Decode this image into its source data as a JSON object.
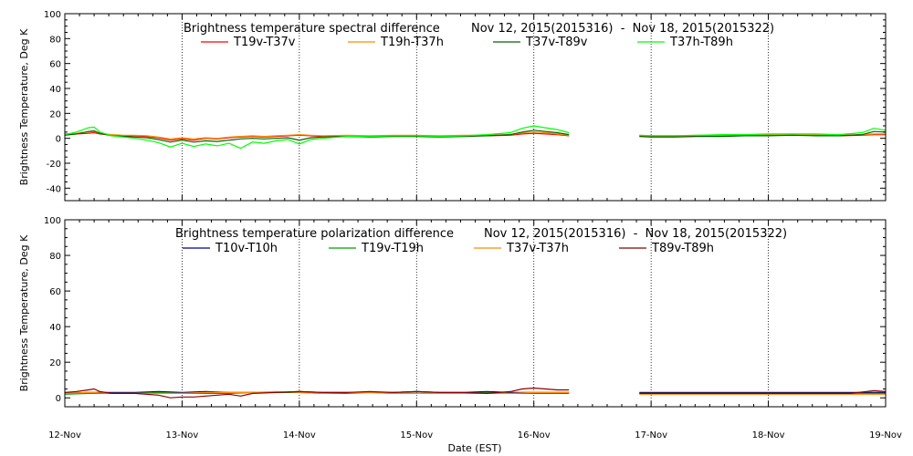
{
  "chart_data": [
    {
      "type": "line",
      "title": "Brightness temperature spectral difference",
      "date_range": "Nov 12, 2015(2015316)  -  Nov 18, 2015(2015322)",
      "ylabel": "Brightness Temperature, Deg K",
      "xlabel": "",
      "ylim": [
        -50,
        100
      ],
      "y_ticks": [
        100,
        80,
        60,
        40,
        20,
        0,
        -20,
        -40
      ],
      "xlim": [
        "2015-11-12",
        "2015-11-19"
      ],
      "x_ticks": [
        "12-Nov",
        "13-Nov",
        "14-Nov",
        "15-Nov",
        "16-Nov",
        "17-Nov",
        "18-Nov",
        "19-Nov"
      ],
      "grid": "vertical dotted at day boundaries",
      "series": [
        {
          "name": "T19v-T37v",
          "color": "#ff0000",
          "segments": [
            {
              "x": [
                0.0,
                0.1,
                0.2,
                0.25,
                0.3,
                0.4,
                0.5,
                0.6,
                0.7,
                0.8,
                0.9,
                1.0,
                1.1,
                1.2,
                1.3,
                1.4,
                1.5,
                1.6,
                1.7,
                1.8,
                1.9,
                2.0,
                2.1,
                2.2,
                2.4,
                2.6,
                2.8,
                3.0,
                3.2,
                3.4,
                3.6,
                3.8,
                3.9,
                4.0,
                4.1,
                4.2,
                4.3
              ],
              "y": [
                3,
                3.5,
                4,
                4.5,
                3.5,
                2.5,
                2.0,
                2.0,
                1.5,
                0.5,
                -1.5,
                -0.5,
                -1.5,
                0.0,
                -0.5,
                0.5,
                1.0,
                1.5,
                1.0,
                1.5,
                2.0,
                2.5,
                2.0,
                1.5,
                2.0,
                1.5,
                2.0,
                2.0,
                1.5,
                2.0,
                2.0,
                2.5,
                3.5,
                4.0,
                3.5,
                3.0,
                2.0
              ]
            },
            {
              "x": [
                4.9,
                5.0,
                5.2,
                5.4,
                5.6,
                5.8,
                6.0,
                6.2,
                6.4,
                6.6,
                6.8,
                6.9,
                7.0
              ],
              "y": [
                2.0,
                1.5,
                1.5,
                2.0,
                2.0,
                2.0,
                2.5,
                2.5,
                2.5,
                2.0,
                2.5,
                3.0,
                3.0
              ]
            }
          ]
        },
        {
          "name": "T19h-T37h",
          "color": "#ff8c00",
          "segments": [
            {
              "x": [
                0.0,
                0.1,
                0.2,
                0.25,
                0.3,
                0.4,
                0.5,
                0.6,
                0.7,
                0.8,
                0.9,
                1.0,
                1.1,
                1.2,
                1.3,
                1.4,
                1.5,
                1.6,
                1.7,
                1.8,
                1.9,
                2.0,
                2.1,
                2.2,
                2.4,
                2.6,
                2.8,
                3.0,
                3.2,
                3.4,
                3.6,
                3.8,
                3.9,
                4.0,
                4.1,
                4.2,
                4.3
              ],
              "y": [
                3.5,
                4.0,
                5.0,
                5.5,
                4.0,
                3.0,
                2.5,
                2.5,
                2.0,
                1.0,
                -0.5,
                0.5,
                -0.5,
                0.5,
                0.0,
                1.0,
                1.5,
                2.0,
                1.5,
                2.0,
                2.5,
                3.0,
                2.5,
                2.0,
                2.5,
                2.0,
                2.5,
                2.5,
                2.0,
                2.5,
                2.5,
                3.0,
                4.5,
                5.0,
                4.5,
                3.5,
                2.5
              ]
            },
            {
              "x": [
                4.9,
                5.0,
                5.2,
                5.4,
                5.6,
                5.8,
                6.0,
                6.2,
                6.4,
                6.6,
                6.8,
                6.9,
                7.0
              ],
              "y": [
                2.5,
                2.0,
                2.0,
                2.5,
                2.5,
                2.5,
                3.0,
                3.0,
                3.0,
                2.5,
                3.0,
                3.5,
                3.5
              ]
            }
          ]
        },
        {
          "name": "T37v-T89v",
          "color": "#006400",
          "segments": [
            {
              "x": [
                0.0,
                0.1,
                0.2,
                0.25,
                0.3,
                0.4,
                0.5,
                0.6,
                0.7,
                0.8,
                0.9,
                1.0,
                1.1,
                1.2,
                1.3,
                1.4,
                1.5,
                1.6,
                1.7,
                1.8,
                1.9,
                2.0,
                2.1,
                2.2,
                2.4,
                2.6,
                2.8,
                3.0,
                3.2,
                3.4,
                3.6,
                3.8,
                3.9,
                4.0,
                4.1,
                4.2,
                4.3
              ],
              "y": [
                2.5,
                3.5,
                5.5,
                6.0,
                4.0,
                2.0,
                1.5,
                1.0,
                0.5,
                -1.0,
                -3.0,
                -1.5,
                -3.0,
                -2.0,
                -2.5,
                -1.5,
                -0.5,
                0.0,
                -0.5,
                0.0,
                0.5,
                -1.5,
                0.5,
                1.0,
                1.5,
                1.0,
                1.5,
                1.5,
                1.0,
                1.5,
                2.0,
                3.0,
                5.0,
                6.5,
                5.5,
                4.5,
                3.0
              ]
            },
            {
              "x": [
                4.9,
                5.0,
                5.2,
                5.4,
                5.6,
                5.8,
                6.0,
                6.2,
                6.4,
                6.6,
                6.8,
                6.9,
                7.0
              ],
              "y": [
                1.5,
                1.0,
                1.0,
                1.5,
                1.5,
                2.0,
                2.0,
                2.5,
                2.0,
                2.0,
                3.0,
                5.5,
                5.0
              ]
            }
          ]
        },
        {
          "name": "T37h-T89h",
          "color": "#00ff00",
          "segments": [
            {
              "x": [
                0.0,
                0.1,
                0.2,
                0.25,
                0.3,
                0.4,
                0.5,
                0.6,
                0.7,
                0.8,
                0.9,
                1.0,
                1.1,
                1.2,
                1.3,
                1.4,
                1.5,
                1.6,
                1.7,
                1.8,
                1.9,
                2.0,
                2.1,
                2.2,
                2.4,
                2.6,
                2.8,
                3.0,
                3.2,
                3.4,
                3.6,
                3.8,
                3.9,
                4.0,
                4.1,
                4.2,
                4.3
              ],
              "y": [
                3.0,
                5.0,
                8.5,
                9.0,
                5.0,
                2.0,
                1.0,
                0.0,
                -1.5,
                -3.5,
                -7.0,
                -4.0,
                -6.5,
                -4.5,
                -6.0,
                -4.0,
                -8.0,
                -3.0,
                -4.0,
                -2.0,
                -1.0,
                -4.5,
                -1.0,
                0.0,
                1.5,
                1.5,
                2.0,
                2.0,
                1.5,
                2.0,
                3.0,
                4.5,
                8.0,
                10.0,
                8.5,
                7.0,
                4.5
              ]
            },
            {
              "x": [
                4.9,
                5.0,
                5.2,
                5.4,
                5.6,
                5.8,
                6.0,
                6.2,
                6.4,
                6.6,
                6.8,
                6.9,
                7.0
              ],
              "y": [
                2.5,
                2.0,
                2.0,
                2.5,
                3.0,
                3.0,
                3.5,
                3.5,
                3.5,
                3.0,
                4.5,
                8.0,
                6.5
              ]
            }
          ]
        }
      ]
    },
    {
      "type": "line",
      "title": "Brightness temperature polarization difference",
      "date_range": "Nov 12, 2015(2015316)  -  Nov 18, 2015(2015322)",
      "ylabel": "Brightness Temperature, Deg K",
      "xlabel": "Date (EST)",
      "ylim": [
        -5,
        100
      ],
      "y_ticks": [
        100,
        80,
        60,
        40,
        20,
        0
      ],
      "xlim": [
        "2015-11-12",
        "2015-11-19"
      ],
      "x_ticks": [
        "12-Nov",
        "13-Nov",
        "14-Nov",
        "15-Nov",
        "16-Nov",
        "17-Nov",
        "18-Nov",
        "19-Nov"
      ],
      "grid": "vertical dotted at day boundaries",
      "series": [
        {
          "name": "T10v-T10h",
          "color": "#00008b",
          "segments": [
            {
              "x": [
                0.0,
                0.2,
                0.4,
                0.6,
                0.8,
                1.0,
                1.2,
                1.4,
                1.6,
                1.8,
                2.0,
                2.2,
                2.4,
                2.6,
                2.8,
                3.0,
                3.2,
                3.4,
                3.6,
                3.8,
                4.0,
                4.2,
                4.3
              ],
              "y": [
                2.5,
                3.0,
                3.0,
                3.0,
                3.5,
                3.0,
                3.5,
                3.0,
                3.0,
                3.0,
                3.5,
                3.0,
                3.0,
                3.0,
                3.0,
                3.5,
                3.0,
                3.0,
                3.5,
                3.0,
                3.0,
                3.0,
                3.0
              ]
            },
            {
              "x": [
                4.9,
                5.2,
                5.5,
                5.8,
                6.1,
                6.4,
                6.7,
                7.0
              ],
              "y": [
                3.0,
                3.0,
                3.0,
                3.0,
                3.0,
                3.0,
                3.0,
                3.0
              ]
            }
          ]
        },
        {
          "name": "T19v-T19h",
          "color": "#00a000",
          "segments": [
            {
              "x": [
                0.0,
                0.2,
                0.4,
                0.6,
                0.8,
                1.0,
                1.2,
                1.4,
                1.6,
                1.8,
                2.0,
                2.2,
                2.4,
                2.6,
                2.8,
                3.0,
                3.2,
                3.4,
                3.6,
                3.8,
                4.0,
                4.2,
                4.3
              ],
              "y": [
                2.0,
                2.5,
                2.5,
                2.5,
                3.0,
                2.5,
                2.5,
                2.5,
                3.0,
                3.0,
                3.0,
                2.5,
                2.5,
                3.0,
                2.5,
                2.5,
                2.5,
                2.5,
                3.0,
                2.5,
                2.5,
                2.5,
                2.5
              ]
            },
            {
              "x": [
                4.9,
                5.2,
                5.5,
                5.8,
                6.1,
                6.4,
                6.7,
                7.0
              ],
              "y": [
                2.5,
                2.5,
                2.5,
                2.5,
                2.5,
                2.5,
                2.5,
                2.5
              ]
            }
          ]
        },
        {
          "name": "T37v-T37h",
          "color": "#ff8c00",
          "segments": [
            {
              "x": [
                0.0,
                0.2,
                0.4,
                0.6,
                0.8,
                1.0,
                1.2,
                1.4,
                1.6,
                1.8,
                2.0,
                2.2,
                2.4,
                2.6,
                2.8,
                3.0,
                3.2,
                3.4,
                3.6,
                3.8,
                4.0,
                4.2,
                4.3
              ],
              "y": [
                2.5,
                3.0,
                2.5,
                2.5,
                2.5,
                2.5,
                3.0,
                3.0,
                3.0,
                3.5,
                3.0,
                2.5,
                3.0,
                3.0,
                2.5,
                2.5,
                2.5,
                2.5,
                2.5,
                2.5,
                3.0,
                3.0,
                3.0
              ]
            },
            {
              "x": [
                4.9,
                5.2,
                5.5,
                5.8,
                6.1,
                6.4,
                6.7,
                7.0
              ],
              "y": [
                2.0,
                2.0,
                2.0,
                2.0,
                2.0,
                2.0,
                2.0,
                2.0
              ]
            }
          ]
        },
        {
          "name": "T89v-T89h",
          "color": "#8b0000",
          "segments": [
            {
              "x": [
                0.0,
                0.1,
                0.2,
                0.25,
                0.3,
                0.4,
                0.6,
                0.8,
                0.9,
                1.0,
                1.1,
                1.2,
                1.3,
                1.4,
                1.5,
                1.6,
                1.8,
                2.0,
                2.2,
                2.4,
                2.6,
                2.8,
                3.0,
                3.2,
                3.4,
                3.6,
                3.8,
                3.9,
                4.0,
                4.1,
                4.2,
                4.3
              ],
              "y": [
                3.0,
                3.5,
                4.5,
                5.0,
                3.5,
                2.5,
                2.5,
                1.5,
                0.0,
                0.5,
                0.5,
                1.0,
                1.5,
                2.0,
                1.0,
                2.5,
                3.0,
                3.5,
                3.0,
                3.0,
                3.5,
                3.0,
                3.5,
                3.0,
                3.0,
                2.5,
                3.5,
                5.0,
                5.5,
                5.0,
                4.5,
                4.5
              ]
            },
            {
              "x": [
                4.9,
                5.2,
                5.5,
                5.8,
                6.1,
                6.4,
                6.7,
                6.9,
                7.0
              ],
              "y": [
                2.5,
                2.5,
                2.5,
                2.5,
                2.5,
                2.5,
                2.5,
                4.0,
                3.5
              ]
            }
          ]
        }
      ]
    }
  ]
}
